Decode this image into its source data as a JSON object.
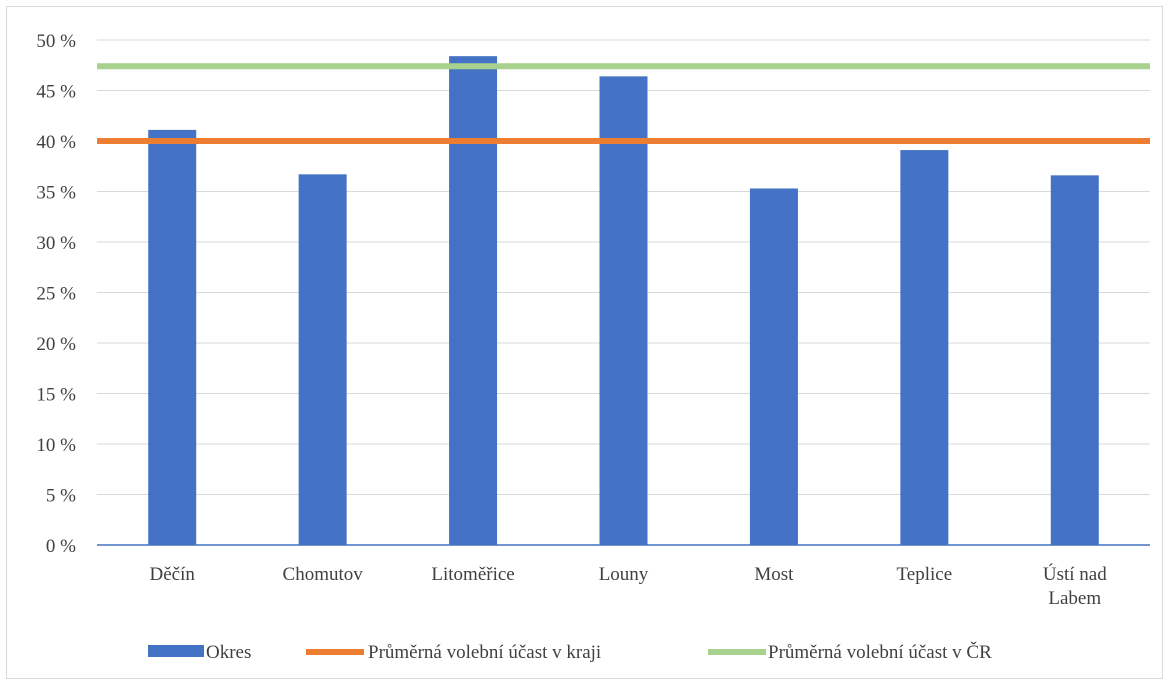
{
  "chart_data": {
    "type": "bar",
    "categories": [
      [
        "Děčín"
      ],
      [
        "Chomutov"
      ],
      [
        "Litoměřice"
      ],
      [
        "Louny"
      ],
      [
        "Most"
      ],
      [
        "Teplice"
      ],
      [
        "Ústí nad",
        "Labem"
      ]
    ],
    "y_ticks": [
      "0 %",
      "5 %",
      "10 %",
      "15 %",
      "20 %",
      "25 %",
      "30 %",
      "35 %",
      "40 %",
      "45 %",
      "50 %"
    ],
    "ylim": [
      0,
      50
    ],
    "grid": true,
    "legend_position": "bottom",
    "bars": {
      "name": "Okres",
      "color": "#4472C4",
      "values": [
        41.1,
        36.7,
        48.4,
        46.4,
        35.3,
        39.1,
        36.6
      ]
    },
    "lines": [
      {
        "name": "Průměrná volební účast v kraji",
        "color": "#ED7D31",
        "value": 40.0
      },
      {
        "name": "Průměrná volební účast v ČR",
        "color": "#A9D18E",
        "value": 47.4
      }
    ]
  }
}
